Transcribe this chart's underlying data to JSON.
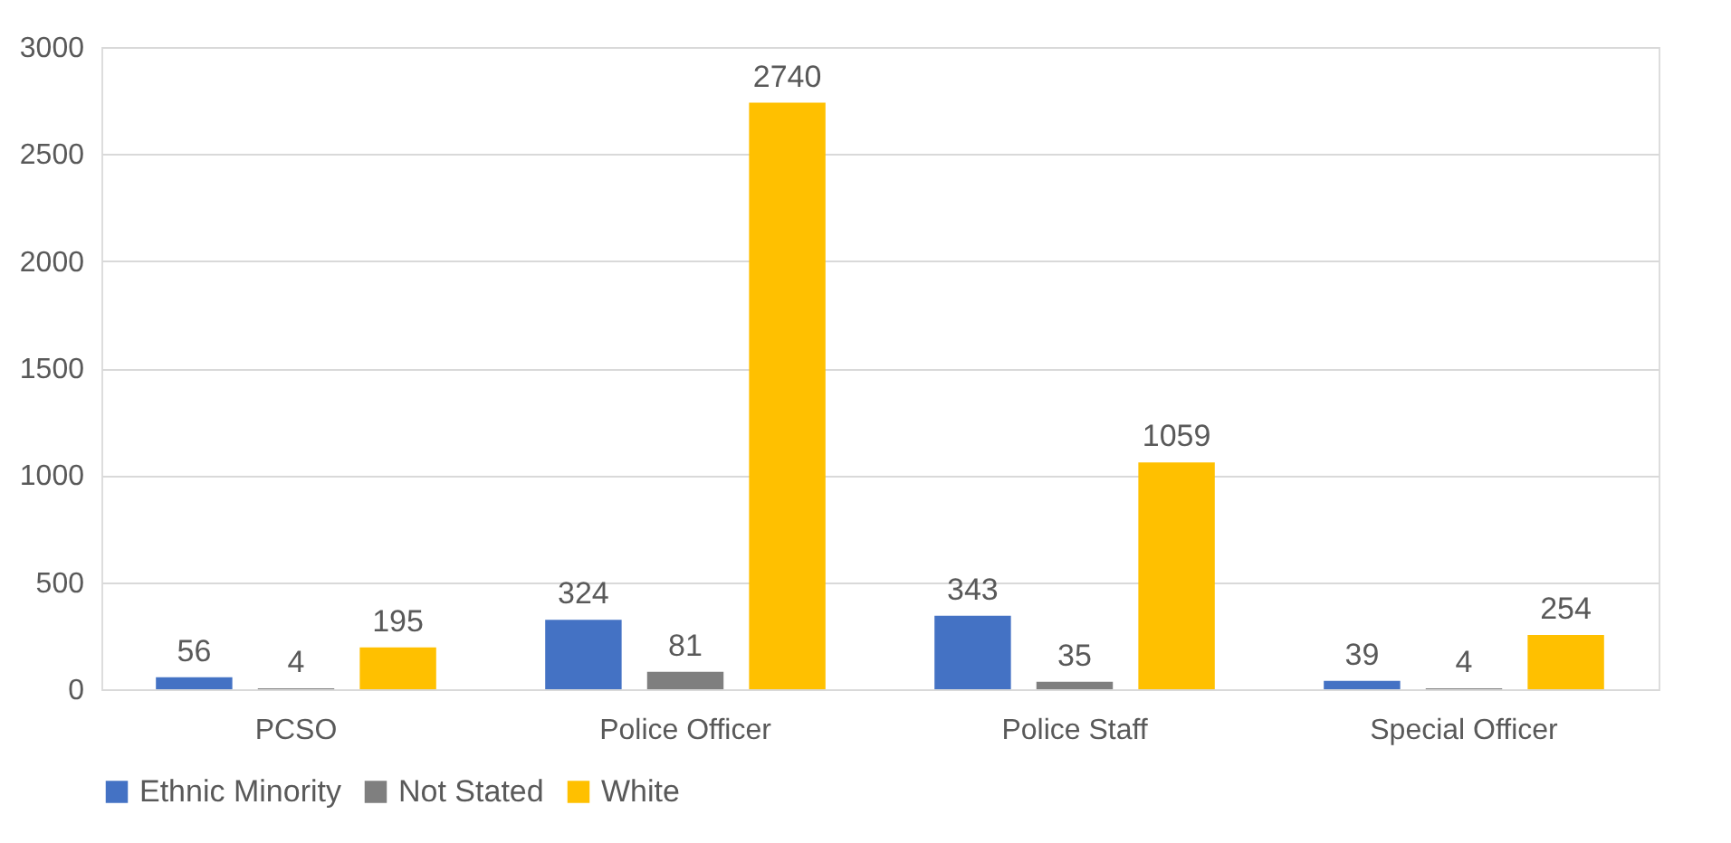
{
  "chart_data": {
    "type": "bar",
    "categories": [
      "PCSO",
      "Police Officer",
      "Police Staff",
      "Special Officer"
    ],
    "series": [
      {
        "name": "Ethnic Minority",
        "color": "#4472c4",
        "values": [
          56,
          324,
          343,
          39
        ]
      },
      {
        "name": "Not Stated",
        "color": "#7f7f7f",
        "values": [
          4,
          81,
          35,
          4
        ]
      },
      {
        "name": "White",
        "color": "#ffc000",
        "values": [
          195,
          2740,
          1059,
          254
        ]
      }
    ],
    "ylim": [
      0,
      3000
    ],
    "yticks": [
      0,
      500,
      1000,
      1500,
      2000,
      2500,
      3000
    ],
    "grid": "y",
    "legend": "bottom",
    "data_labels": true
  }
}
